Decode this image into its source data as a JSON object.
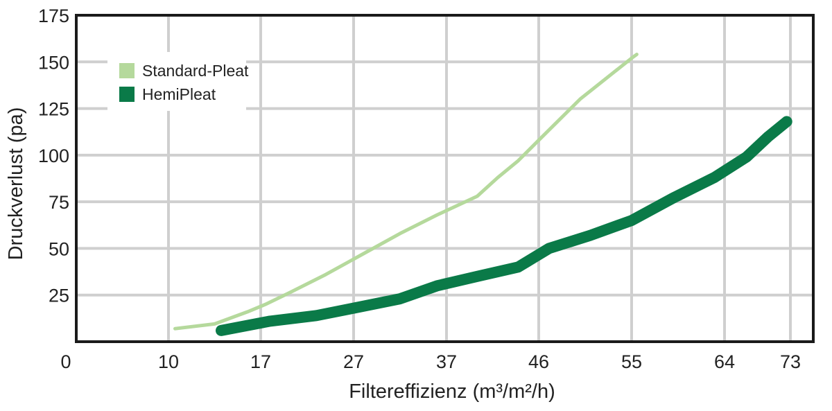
{
  "chart_data": {
    "type": "line",
    "title": "",
    "xlabel": "Filtereffizienz (m³/m²/h)",
    "ylabel": "Druckverlust (pa)",
    "x_ticks": [
      "0",
      "10",
      "17",
      "27",
      "37",
      "46",
      "55",
      "64",
      "73"
    ],
    "y_ticks": [
      "25",
      "50",
      "75",
      "100",
      "125",
      "150",
      "175"
    ],
    "y_range": [
      0,
      175
    ],
    "grid": true,
    "legend_position": "top-left",
    "series": [
      {
        "name": "Standard-Pleat",
        "color": "#b5d99c",
        "points": [
          [
            10.5,
            7
          ],
          [
            13.5,
            9.5
          ],
          [
            16,
            16
          ],
          [
            17.5,
            20
          ],
          [
            20,
            26
          ],
          [
            24,
            36
          ],
          [
            28,
            47
          ],
          [
            32,
            58
          ],
          [
            36,
            68
          ],
          [
            40,
            78
          ],
          [
            42,
            88
          ],
          [
            44,
            97
          ],
          [
            46,
            108
          ],
          [
            50,
            130
          ],
          [
            55,
            152
          ],
          [
            55.5,
            154
          ]
        ]
      },
      {
        "name": "HemiPleat",
        "color": "#0a7a48",
        "points": [
          [
            14,
            6
          ],
          [
            18,
            11
          ],
          [
            23,
            14
          ],
          [
            27,
            18
          ],
          [
            32,
            23
          ],
          [
            36,
            30
          ],
          [
            40,
            35
          ],
          [
            44,
            40
          ],
          [
            47,
            50
          ],
          [
            51,
            57
          ],
          [
            55,
            65
          ],
          [
            59,
            77
          ],
          [
            63,
            88
          ],
          [
            67,
            99
          ],
          [
            70,
            110
          ],
          [
            72.5,
            118
          ]
        ]
      }
    ]
  }
}
